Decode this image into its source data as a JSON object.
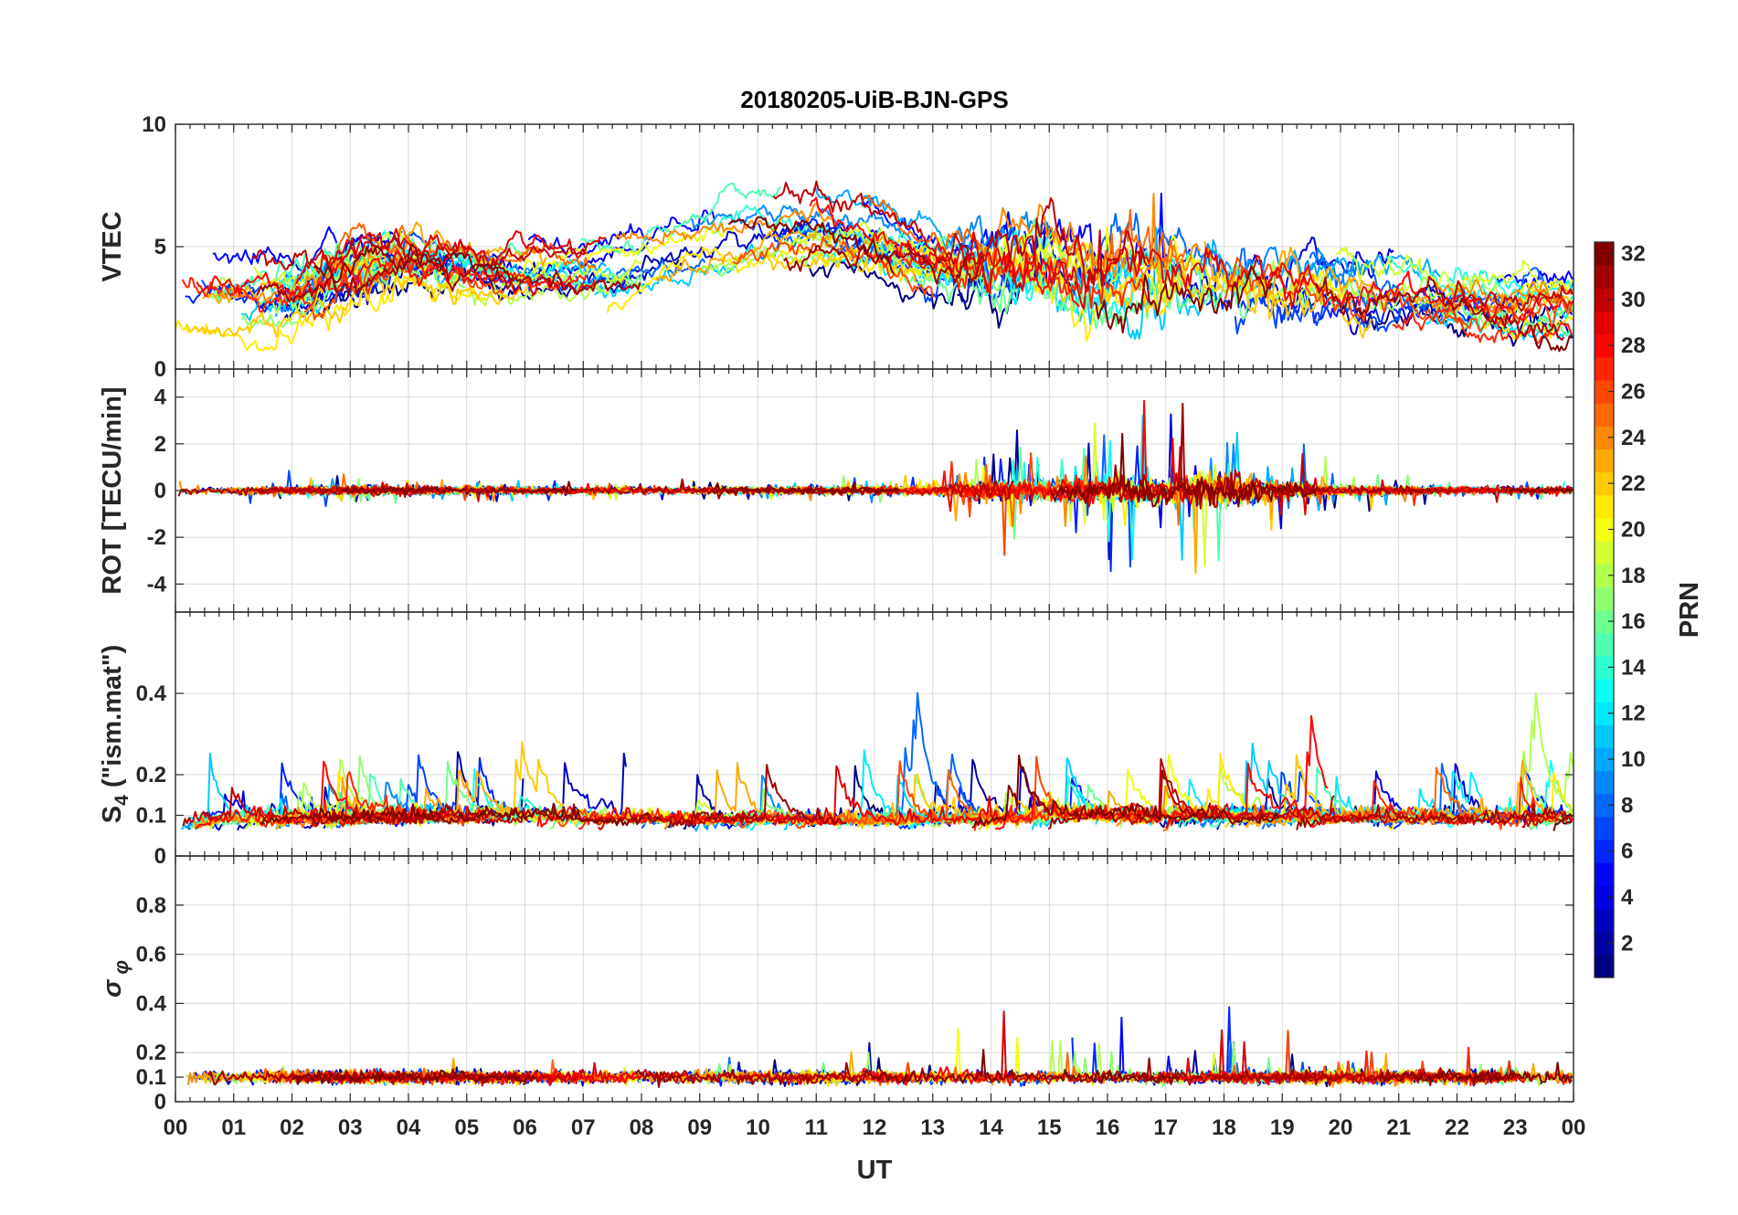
{
  "chart_data": {
    "type": "line",
    "title": "20180205-UiB-BJN-GPS",
    "xlabel": "UT",
    "xticks": [
      "00",
      "01",
      "02",
      "03",
      "04",
      "05",
      "06",
      "07",
      "08",
      "09",
      "10",
      "11",
      "12",
      "13",
      "14",
      "15",
      "16",
      "17",
      "18",
      "19",
      "20",
      "21",
      "22",
      "23",
      "00"
    ],
    "xlim": [
      0,
      24
    ],
    "grid": true,
    "panels": [
      {
        "id": "vtec",
        "ylabel": "VTEC",
        "ylim": [
          0,
          10
        ],
        "yticks": [
          "0",
          "5",
          "10"
        ],
        "ytick_values": [
          0,
          5,
          10
        ],
        "activity_profile": [
          [
            0,
            0.3
          ],
          [
            2,
            0.45
          ],
          [
            3,
            0.6
          ],
          [
            6,
            0.35
          ],
          [
            9,
            0.3
          ],
          [
            13,
            0.45
          ],
          [
            14,
            1.0
          ],
          [
            17,
            1.0
          ],
          [
            19,
            0.8
          ],
          [
            21,
            0.5
          ],
          [
            24,
            0.4
          ]
        ],
        "trend": [
          [
            0,
            3.0
          ],
          [
            1,
            3.0
          ],
          [
            2,
            3.0
          ],
          [
            3,
            4.0
          ],
          [
            4,
            4.5
          ],
          [
            5,
            4.0
          ],
          [
            6,
            3.8
          ],
          [
            7,
            3.8
          ],
          [
            8,
            4.3
          ],
          [
            9,
            5.0
          ],
          [
            10,
            5.5
          ],
          [
            11,
            5.6
          ],
          [
            12,
            5.3
          ],
          [
            13,
            4.3
          ],
          [
            14,
            4.3
          ],
          [
            15,
            4.5
          ],
          [
            16,
            3.8
          ],
          [
            17,
            3.8
          ],
          [
            18,
            3.8
          ],
          [
            19,
            3.6
          ],
          [
            20,
            3.2
          ],
          [
            21,
            3.0
          ],
          [
            22,
            2.8
          ],
          [
            23,
            2.5
          ],
          [
            24,
            2.5
          ]
        ]
      },
      {
        "id": "rot",
        "ylabel": "ROT [TECU/min]",
        "ylim": [
          -5.2,
          5.2
        ],
        "yticks": [
          "-4",
          "-2",
          "0",
          "2",
          "4"
        ],
        "ytick_values": [
          -4,
          -2,
          0,
          2,
          4
        ],
        "baseline": 0,
        "activity_profile": [
          [
            0,
            0.15
          ],
          [
            2,
            0.3
          ],
          [
            3,
            0.4
          ],
          [
            4,
            0.25
          ],
          [
            6,
            0.2
          ],
          [
            10,
            0.15
          ],
          [
            13,
            0.3
          ],
          [
            14,
            1.0
          ],
          [
            15,
            1.2
          ],
          [
            17,
            1.4
          ],
          [
            18,
            2.0
          ],
          [
            19,
            0.9
          ],
          [
            20,
            0.4
          ],
          [
            22,
            0.2
          ],
          [
            24,
            0.15
          ]
        ]
      },
      {
        "id": "s4",
        "ylabel": "S4 (\"ism.mat\")",
        "ylim": [
          0,
          0.6
        ],
        "yticks": [
          "0",
          "0.1",
          "0.2",
          "0.4"
        ],
        "ytick_values": [
          0,
          0.1,
          0.2,
          0.4
        ],
        "baseline": 0.06,
        "activity_profile": [
          [
            0,
            0.7
          ],
          [
            3,
            0.8
          ],
          [
            5,
            0.9
          ],
          [
            6,
            1.0
          ],
          [
            8,
            0.7
          ],
          [
            12,
            0.6
          ],
          [
            14,
            0.8
          ],
          [
            15,
            1.0
          ],
          [
            18,
            0.9
          ],
          [
            21,
            0.8
          ],
          [
            24,
            0.8
          ]
        ]
      },
      {
        "id": "sigphi",
        "ylabel": "σφ",
        "ylim": [
          0,
          1
        ],
        "yticks": [
          "0",
          "0.1",
          "0.2",
          "0.4",
          "0.6",
          "0.8"
        ],
        "ytick_values": [
          0,
          0.1,
          0.2,
          0.4,
          0.6,
          0.8
        ],
        "baseline": 0.1,
        "activity_profile": [
          [
            0,
            0.3
          ],
          [
            3,
            0.4
          ],
          [
            6,
            0.3
          ],
          [
            13,
            0.4
          ],
          [
            14,
            0.8
          ],
          [
            16,
            0.9
          ],
          [
            18,
            1.4
          ],
          [
            19,
            0.7
          ],
          [
            21,
            0.5
          ],
          [
            24,
            0.4
          ]
        ]
      }
    ],
    "series_count": 32,
    "colorbar": {
      "label": "PRN",
      "range": [
        1,
        32
      ],
      "ticks": [
        "2",
        "4",
        "6",
        "8",
        "10",
        "12",
        "14",
        "16",
        "18",
        "20",
        "22",
        "24",
        "26",
        "28",
        "30",
        "32"
      ],
      "tick_values": [
        2,
        4,
        6,
        8,
        10,
        12,
        14,
        16,
        18,
        20,
        22,
        24,
        26,
        28,
        30,
        32
      ],
      "colormap": "jet"
    }
  }
}
